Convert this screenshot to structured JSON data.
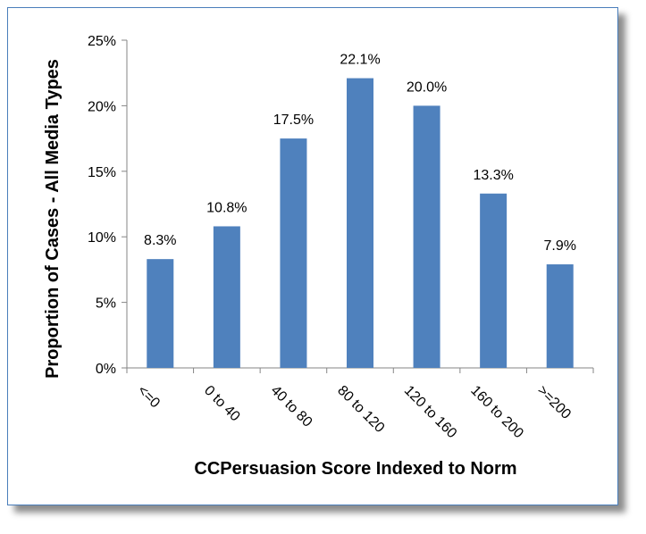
{
  "chart_data": {
    "type": "bar",
    "categories": [
      "<=0",
      "0 to 40",
      "40 to 80",
      "80 to 120",
      "120 to 160",
      "160 to 200",
      ">=200"
    ],
    "values": [
      8.3,
      10.8,
      17.5,
      22.1,
      20.0,
      13.3,
      7.9
    ],
    "data_labels": [
      "8.3%",
      "10.8%",
      "17.5%",
      "22.1%",
      "20.0%",
      "13.3%",
      "7.9%"
    ],
    "title": "",
    "xlabel": "CCPersuasion Score Indexed to Norm",
    "ylabel": "Proportion of Cases - All Media Types",
    "ylim": [
      0,
      25
    ],
    "y_ticks": [
      0,
      5,
      10,
      15,
      20,
      25
    ],
    "y_tick_labels": [
      "0%",
      "5%",
      "10%",
      "15%",
      "20%",
      "25%"
    ],
    "grid": false,
    "legend": "none",
    "bar_color": "#4f81bd",
    "frame_color": "#4a7ebb"
  }
}
